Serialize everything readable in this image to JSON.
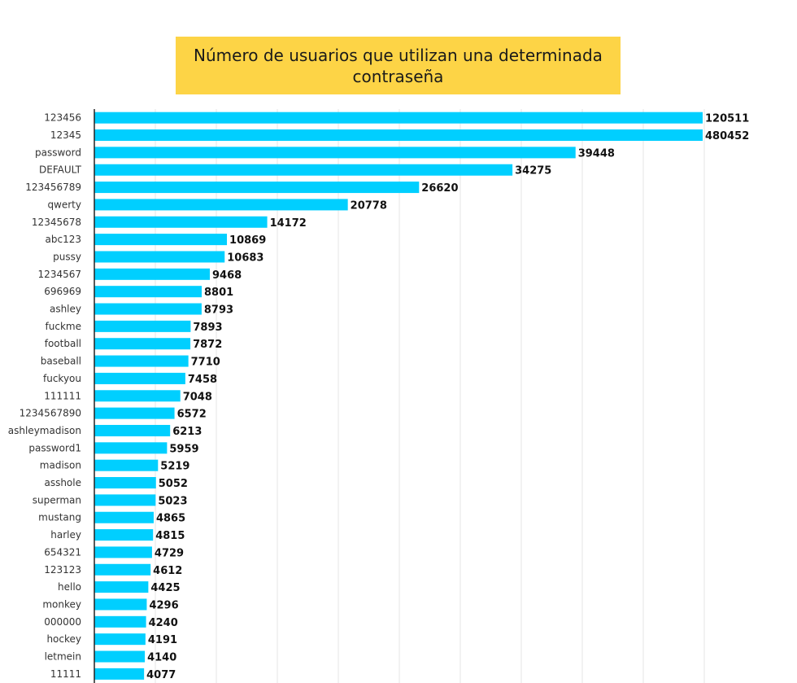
{
  "colors": {
    "bar": "#00cfff",
    "title_bg": "#fdd446",
    "grid": "#e6e6e6",
    "axis": "#222222"
  },
  "chart_data": {
    "type": "bar",
    "orientation": "horizontal",
    "title": "Número de usuarios que utilizan una determinada contraseña",
    "xlim": [
      0,
      50000
    ],
    "grid": true,
    "categories": [
      "123456",
      "12345",
      "password",
      "DEFAULT",
      "123456789",
      "qwerty",
      "12345678",
      "abc123",
      "pussy",
      "1234567",
      "696969",
      "ashley",
      "fuckme",
      "football",
      "baseball",
      "fuckyou",
      "111111",
      "1234567890",
      "ashleymadison",
      "password1",
      "madison",
      "asshole",
      "superman",
      "mustang",
      "harley",
      "654321",
      "123123",
      "hello",
      "monkey",
      "000000",
      "hockey",
      "letmein",
      "11111"
    ],
    "values": [
      120511,
      480452,
      39448,
      34275,
      26620,
      20778,
      14172,
      10869,
      10683,
      9468,
      8801,
      8793,
      7893,
      7872,
      7710,
      7458,
      7048,
      6572,
      6213,
      5959,
      5219,
      5052,
      5023,
      4865,
      4815,
      4729,
      4612,
      4425,
      4296,
      4240,
      4191,
      4140,
      4077
    ],
    "value_labels": [
      "120511",
      "480452",
      "39448",
      "34275",
      "26620",
      "20778",
      "14172",
      "10869",
      "10683",
      "9468",
      "8801",
      "8793",
      "7893",
      "7872",
      "7710",
      "7458",
      "7048",
      "6572",
      "6213",
      "5959",
      "5219",
      "5052",
      "5023",
      "4865",
      "4815",
      "4729",
      "4612",
      "4425",
      "4296",
      "4240",
      "4191",
      "4140",
      "4077"
    ]
  }
}
